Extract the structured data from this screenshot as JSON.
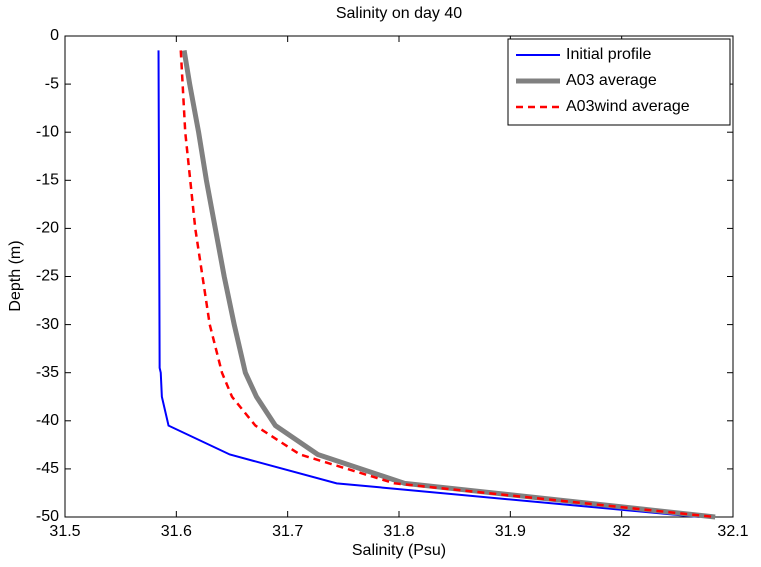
{
  "chart_data": {
    "type": "line",
    "title": "Salinity on day 40",
    "x_label": "Salinity (Psu)",
    "y_label": "Depth (m)",
    "xlim": [
      31.5,
      32.1
    ],
    "xticks": [
      31.5,
      31.6,
      31.7,
      31.8,
      31.9,
      32,
      32.1
    ],
    "ylim": [
      -50,
      0
    ],
    "yticks": [
      0,
      -5,
      -10,
      -15,
      -20,
      -25,
      -30,
      -35,
      -40,
      -45,
      -50
    ],
    "legend": "upper right",
    "series": [
      {
        "name": "Initial profile",
        "color": "#0000ff",
        "style": "solid",
        "width": 2,
        "x": [
          31.584,
          31.585,
          31.586,
          31.587,
          31.593,
          31.648,
          31.744,
          32.07
        ],
        "values": [
          -1.5,
          -34.5,
          -35,
          -37.5,
          -40.5,
          -43.5,
          -46.5,
          -50
        ]
      },
      {
        "name": "A03 average",
        "color": "#808080",
        "style": "solid",
        "width": 5,
        "x": [
          31.607,
          31.612,
          31.62,
          31.627,
          31.635,
          31.643,
          31.652,
          31.662,
          31.672,
          31.689,
          31.727,
          31.805,
          32.084
        ],
        "values": [
          -1.5,
          -5,
          -10,
          -15,
          -20,
          -25,
          -30,
          -35,
          -37.5,
          -40.5,
          -43.5,
          -46.5,
          -50
        ]
      },
      {
        "name": "A03wind average",
        "color": "#ff0000",
        "style": "dashed",
        "width": 2.5,
        "x": [
          31.604,
          31.608,
          31.617,
          31.63,
          31.641,
          31.65,
          31.671,
          31.711,
          31.796,
          32.084
        ],
        "values": [
          -1.5,
          -10,
          -20,
          -30,
          -35,
          -37.5,
          -40.5,
          -43.5,
          -46.5,
          -50
        ]
      }
    ]
  }
}
